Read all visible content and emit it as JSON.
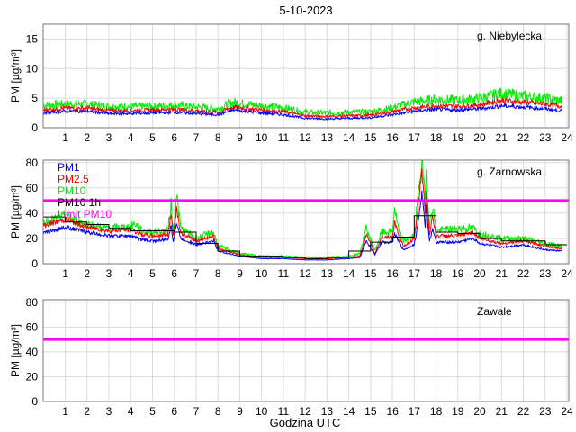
{
  "chart_data": {
    "title": "5-10-2023",
    "xlabel": "Godzina UTC",
    "xticks": [
      1,
      2,
      3,
      4,
      5,
      6,
      7,
      8,
      9,
      10,
      11,
      12,
      13,
      14,
      15,
      16,
      17,
      18,
      19,
      20,
      21,
      22,
      23,
      24
    ],
    "xlim": [
      0,
      24
    ],
    "colors": {
      "PM1": "#0000ff",
      "PM2.5": "#ff0000",
      "PM10": "#00ee00",
      "PM10 1h": "#000000",
      "Limit PM10": "#ff00ff"
    },
    "legend": [
      "PM1",
      "PM2.5",
      "PM10",
      "PM10 1h",
      "Limit PM10"
    ],
    "legend_placement": "top-left",
    "grid": true,
    "panels": [
      {
        "type": "line",
        "station": "g. Niebylecka",
        "ylabel": "PM [µg/m³]",
        "ylim": [
          0,
          17.5
        ],
        "yticks": [
          0,
          5,
          10,
          15
        ],
        "limit": null,
        "series": [
          {
            "name": "PM1",
            "x": [
              0,
              1,
              2,
              3,
              4,
              5,
              6,
              7,
              8,
              8.7,
              10,
              11,
              12,
              13,
              14,
              15,
              16,
              17,
              18,
              19,
              20,
              21,
              22,
              23,
              23.8
            ],
            "y": [
              2.5,
              2.8,
              2.8,
              2.4,
              2.4,
              2.5,
              2.6,
              2.4,
              2.2,
              3.0,
              2.5,
              2.2,
              1.6,
              1.5,
              1.6,
              1.7,
              2.2,
              2.8,
              3.1,
              3.0,
              3.2,
              3.7,
              3.5,
              3.2,
              2.8
            ]
          },
          {
            "name": "PM2.5",
            "x": [
              0,
              1,
              2,
              3,
              4,
              5,
              6,
              7,
              8,
              8.7,
              10,
              11,
              12,
              13,
              14,
              15,
              16,
              17,
              18,
              19,
              20,
              21,
              22,
              23,
              23.8
            ],
            "y": [
              3.0,
              3.3,
              3.3,
              2.9,
              2.9,
              3.0,
              3.1,
              2.9,
              2.6,
              3.5,
              3.0,
              2.7,
              2.0,
              1.9,
              2.0,
              2.1,
              2.7,
              3.4,
              3.7,
              3.6,
              3.9,
              4.6,
              4.3,
              4.0,
              3.6
            ]
          },
          {
            "name": "PM10",
            "x": [
              0,
              1,
              2,
              3,
              4,
              5,
              6,
              7,
              8,
              8.7,
              10,
              11,
              12,
              13,
              14,
              15,
              16,
              17,
              18,
              19,
              20,
              21,
              22,
              23,
              23.8
            ],
            "y": [
              3.8,
              4.0,
              4.0,
              3.6,
              3.6,
              3.6,
              3.8,
              3.5,
              3.2,
              4.3,
              3.7,
              3.4,
              2.6,
              2.5,
              2.6,
              2.7,
              3.4,
              4.4,
              4.8,
              4.6,
              5.0,
              5.8,
              5.3,
              5.0,
              4.5
            ]
          }
        ]
      },
      {
        "type": "line",
        "station": "g. Zarnowska",
        "ylabel": "PM [µg/m³]",
        "ylim": [
          0,
          82
        ],
        "yticks": [
          0,
          20,
          40,
          60,
          80
        ],
        "limit": 50,
        "series": [
          {
            "name": "PM1",
            "x": [
              0,
              1,
              2,
              3,
              4,
              4.5,
              5,
              5.7,
              5.85,
              5.95,
              6.1,
              6.3,
              7,
              7.8,
              8,
              9,
              10,
              11,
              12,
              13,
              14,
              14.5,
              14.8,
              15.2,
              15.5,
              16,
              16.1,
              16.3,
              16.5,
              17,
              17.1,
              17.35,
              17.5,
              17.55,
              17.7,
              17.85,
              18,
              19,
              19.7,
              20,
              21,
              22,
              23,
              23.8
            ],
            "y": [
              24,
              29,
              25,
              22,
              22,
              19,
              18,
              19,
              30,
              18,
              32,
              20,
              15,
              18,
              10,
              6,
              4,
              4,
              3,
              3,
              4,
              5,
              18,
              7,
              17,
              17,
              24,
              17,
              11,
              15,
              24,
              55,
              30,
              45,
              18,
              28,
              17,
              17,
              20,
              16,
              13,
              15,
              11,
              10
            ]
          },
          {
            "name": "PM2.5",
            "x": [
              0,
              1,
              2,
              3,
              4,
              4.5,
              5,
              5.7,
              5.85,
              5.95,
              6.1,
              6.3,
              7,
              7.8,
              8,
              9,
              10,
              11,
              12,
              13,
              14,
              14.5,
              14.8,
              15.2,
              15.5,
              16,
              16.1,
              16.3,
              16.5,
              17,
              17.1,
              17.35,
              17.5,
              17.55,
              17.7,
              17.85,
              18,
              19,
              19.7,
              20,
              21,
              22,
              23,
              23.8
            ],
            "y": [
              30,
              35,
              29,
              26,
              27,
              23,
              22,
              23,
              40,
              22,
              44,
              24,
              18,
              22,
              12,
              7,
              5,
              5,
              4,
              4,
              5,
              6,
              23,
              8,
              21,
              21,
              33,
              21,
              14,
              19,
              33,
              75,
              40,
              60,
              23,
              38,
              22,
              22,
              25,
              20,
              16,
              18,
              14,
              12
            ]
          },
          {
            "name": "PM10",
            "x": [
              0,
              1,
              2,
              3,
              4,
              4.2,
              4.5,
              5,
              5.7,
              5.85,
              5.95,
              6.1,
              6.3,
              7,
              7.8,
              8,
              9,
              10,
              11,
              12,
              13,
              14,
              14.5,
              14.8,
              15.2,
              15.5,
              16,
              16.1,
              16.3,
              16.5,
              17,
              17.1,
              17.35,
              17.5,
              17.55,
              17.7,
              17.85,
              18,
              19,
              19.7,
              20,
              21,
              22,
              23,
              23.8
            ],
            "y": [
              33,
              37,
              31,
              28,
              29,
              32,
              26,
              25,
              26,
              48,
              25,
              55,
              28,
              20,
              25,
              14,
              8,
              6,
              6,
              5,
              5,
              6,
              8,
              28,
              10,
              25,
              25,
              44,
              25,
              18,
              22,
              40,
              84,
              50,
              72,
              30,
              46,
              26,
              28,
              28,
              24,
              20,
              20,
              16,
              14
            ]
          },
          {
            "name": "PM10 1h",
            "x": [
              0,
              1,
              2,
              3,
              4,
              5,
              6,
              7,
              8,
              9,
              10,
              11,
              12,
              13,
              14,
              15,
              16,
              17,
              18,
              19,
              20,
              21,
              22,
              23
            ],
            "y": [
              37,
              33,
              31,
              28,
              26,
              26,
              25,
              16,
              10,
              6,
              6,
              5,
              4,
              5,
              10,
              17,
              21,
              38,
              25,
              24,
              20,
              18,
              18,
              15
            ]
          }
        ]
      },
      {
        "type": "line",
        "station": "Zawale",
        "ylabel": "PM [µg/m³]",
        "ylim": [
          0,
          82
        ],
        "yticks": [
          0,
          20,
          40,
          60,
          80
        ],
        "limit": 50,
        "series": []
      }
    ]
  }
}
